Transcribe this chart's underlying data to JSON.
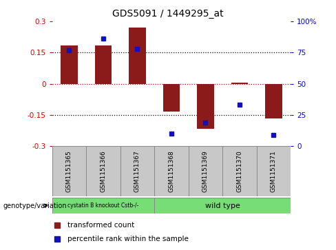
{
  "title": "GDS5091 / 1449295_at",
  "samples": [
    "GSM1151365",
    "GSM1151366",
    "GSM1151367",
    "GSM1151368",
    "GSM1151369",
    "GSM1151370",
    "GSM1151371"
  ],
  "red_values": [
    0.185,
    0.185,
    0.27,
    -0.135,
    -0.215,
    0.005,
    -0.165
  ],
  "blue_values_pct": [
    77,
    86,
    78,
    10,
    19,
    33,
    9
  ],
  "ylim_left": [
    -0.3,
    0.3
  ],
  "ylim_right": [
    0,
    100
  ],
  "yticks_left": [
    -0.3,
    -0.15,
    0.0,
    0.15,
    0.3
  ],
  "yticks_right": [
    0,
    25,
    50,
    75,
    100
  ],
  "ytick_labels_left": [
    "-0.3",
    "-0.15",
    "0",
    "0.15",
    "0.3"
  ],
  "ytick_labels_right": [
    "0",
    "25",
    "50",
    "75",
    "100%"
  ],
  "hlines_dotted": [
    0.15,
    -0.15
  ],
  "hline_zero_color": "#CC0000",
  "group1_label": "cystatin B knockout Cstb-/-",
  "group2_label": "wild type",
  "group1_indices": [
    0,
    1,
    2
  ],
  "group2_indices": [
    3,
    4,
    5,
    6
  ],
  "group_color": "#77DD77",
  "bar_color": "#8B1A1A",
  "dot_color": "#1111BB",
  "bar_width": 0.5,
  "legend_label_red": "transformed count",
  "legend_label_blue": "percentile rank within the sample",
  "genotype_label": "genotype/variation",
  "left_tick_color": "#CC0000",
  "right_tick_color": "#0000CC",
  "sample_box_color": "#C8C8C8",
  "sample_box_edge": "#888888"
}
